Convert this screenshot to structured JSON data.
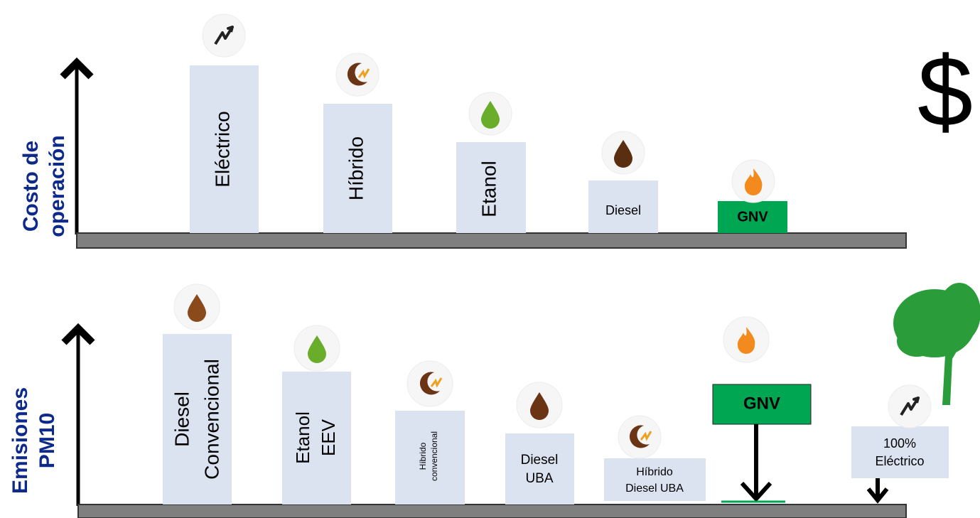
{
  "top_panel": {
    "axis_label": [
      "Costo de",
      "operación"
    ],
    "items": [
      {
        "label": [
          "Eléctrico"
        ]
      },
      {
        "label": [
          "Híbrido"
        ]
      },
      {
        "label": [
          "Etanol"
        ]
      },
      {
        "label": [
          "Diesel"
        ]
      },
      {
        "label": [
          "GNV"
        ]
      }
    ]
  },
  "symbol": "$",
  "bottom_panel": {
    "axis_label": [
      "Emisiones",
      "PM10"
    ],
    "items": [
      {
        "label": [
          "Diesel",
          "Convencional"
        ]
      },
      {
        "label": [
          "Etanol",
          "EEV"
        ]
      },
      {
        "label": [
          "Híbrido",
          "convencional"
        ]
      },
      {
        "label": [
          "Diesel",
          "UBA"
        ]
      },
      {
        "label": [
          "Híbrido",
          "Diesel UBA"
        ]
      },
      {
        "label": [
          "GNV"
        ]
      },
      {
        "label": [
          "100%",
          "Eléctrico"
        ]
      }
    ]
  }
}
